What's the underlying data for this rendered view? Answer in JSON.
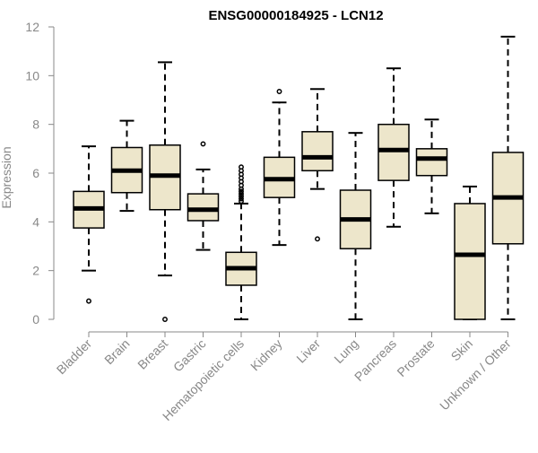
{
  "chart_data": {
    "type": "boxplot",
    "title": "ENSG00000184925 - LCN12",
    "ylabel": "Expression",
    "ylim": [
      0,
      12
    ],
    "yticks": [
      0,
      2,
      4,
      6,
      8,
      10,
      12
    ],
    "grid": false,
    "categories": [
      "Bladder",
      "Brain",
      "Breast",
      "Gastric",
      "Hematopoietic cells",
      "Kidney",
      "Liver",
      "Lung",
      "Pancreas",
      "Prostate",
      "Skin",
      "Unknown / Other"
    ],
    "boxes": [
      {
        "whisker_low": 2.0,
        "q1": 3.75,
        "median": 4.55,
        "q3": 5.25,
        "whisker_high": 7.1,
        "outliers": [
          0.75
        ]
      },
      {
        "whisker_low": 4.45,
        "q1": 5.2,
        "median": 6.1,
        "q3": 7.05,
        "whisker_high": 8.15,
        "outliers": []
      },
      {
        "whisker_low": 1.8,
        "q1": 4.5,
        "median": 5.9,
        "q3": 7.15,
        "whisker_high": 10.55,
        "outliers": [
          0.0
        ]
      },
      {
        "whisker_low": 2.85,
        "q1": 4.05,
        "median": 4.5,
        "q3": 5.15,
        "whisker_high": 6.15,
        "outliers": [
          7.2
        ]
      },
      {
        "whisker_low": 0.0,
        "q1": 1.4,
        "median": 2.1,
        "q3": 2.75,
        "whisker_high": 4.75,
        "outliers": [
          4.85,
          4.95,
          5.05,
          5.15,
          5.25,
          5.35,
          5.5,
          5.65,
          5.8,
          5.95,
          6.1,
          6.25
        ]
      },
      {
        "whisker_low": 3.05,
        "q1": 5.0,
        "median": 5.75,
        "q3": 6.65,
        "whisker_high": 8.9,
        "outliers": [
          9.35
        ]
      },
      {
        "whisker_low": 5.35,
        "q1": 6.1,
        "median": 6.65,
        "q3": 7.7,
        "whisker_high": 9.45,
        "outliers": [
          3.3
        ]
      },
      {
        "whisker_low": 0.0,
        "q1": 2.9,
        "median": 4.1,
        "q3": 5.3,
        "whisker_high": 7.65,
        "outliers": []
      },
      {
        "whisker_low": 3.8,
        "q1": 5.7,
        "median": 6.95,
        "q3": 8.0,
        "whisker_high": 10.3,
        "outliers": []
      },
      {
        "whisker_low": 4.35,
        "q1": 5.9,
        "median": 6.6,
        "q3": 7.0,
        "whisker_high": 8.2,
        "outliers": []
      },
      {
        "whisker_low": 0.0,
        "q1": 0.0,
        "median": 2.65,
        "q3": 4.75,
        "whisker_high": 5.45,
        "outliers": []
      },
      {
        "whisker_low": 0.0,
        "q1": 3.1,
        "median": 5.0,
        "q3": 6.85,
        "whisker_high": 11.6,
        "outliers": []
      }
    ],
    "colors": {
      "box_fill": "#ede6cb",
      "box_stroke": "#000000",
      "median": "#000000",
      "axis": "#888888",
      "label": "#888888",
      "title": "#000000"
    }
  }
}
